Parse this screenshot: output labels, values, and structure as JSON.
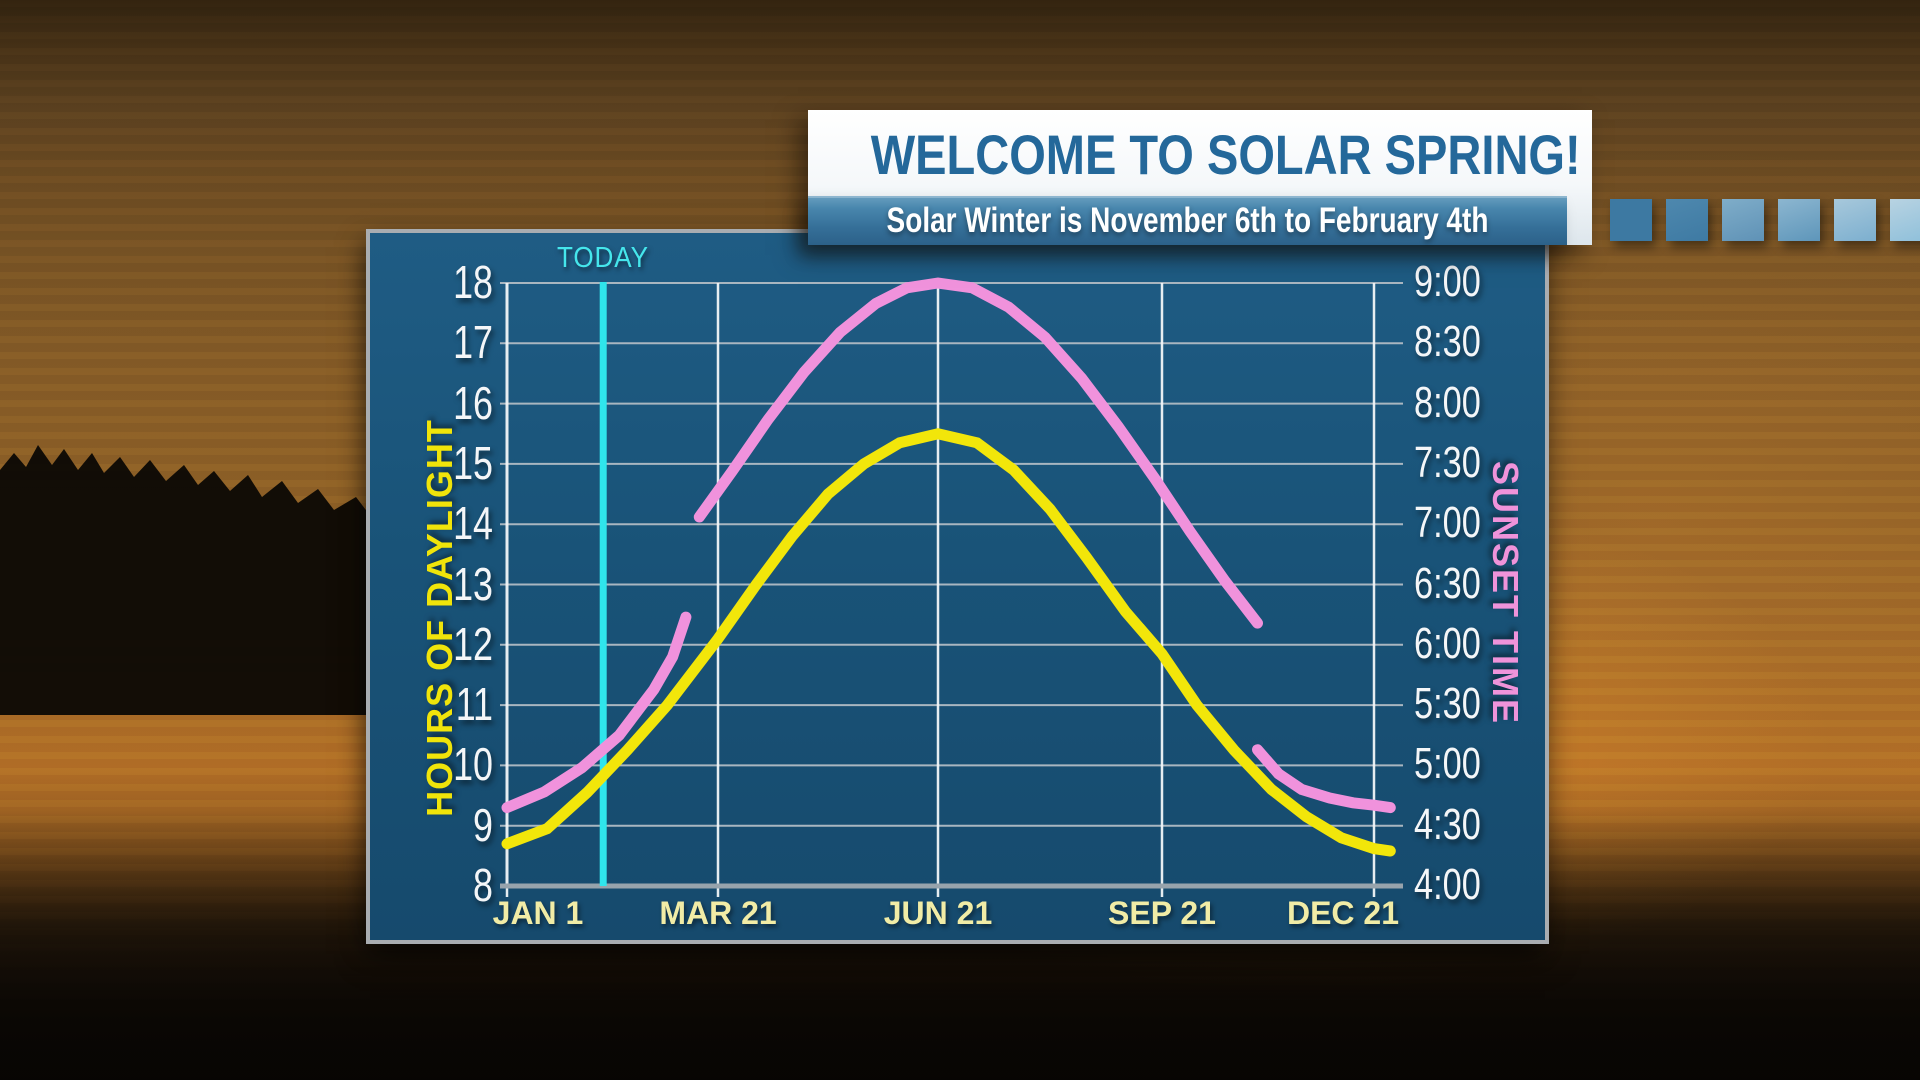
{
  "banner": {
    "title": "WELCOME TO SOLAR SPRING!",
    "subtitle": "Solar Winter is November 6th to February 4th"
  },
  "chart_data": {
    "type": "line",
    "title": "",
    "today_marker": {
      "label": "TODAY",
      "day_of_year": 36
    },
    "x_axis": {
      "ticks": [
        {
          "label": "JAN 1",
          "day": 0
        },
        {
          "label": "MAR 21",
          "day": 79
        },
        {
          "label": "JUN 21",
          "day": 171
        },
        {
          "label": "SEP 21",
          "day": 263
        },
        {
          "label": "DEC 21",
          "day": 354
        }
      ],
      "range_days": [
        0,
        366
      ]
    },
    "left_axis": {
      "label": "HOURS OF DAYLIGHT",
      "min": 8,
      "max": 18,
      "tick_step": 1
    },
    "right_axis": {
      "label": "SUNSET TIME",
      "ticks_bottom_to_top": [
        "4:00",
        "4:30",
        "5:00",
        "5:30",
        "6:00",
        "6:30",
        "7:00",
        "7:30",
        "8:00",
        "8:30",
        "9:00"
      ]
    },
    "series": [
      {
        "name": "Hours of Daylight",
        "axis": "left",
        "color": "#f2e60a",
        "points_day_hours": [
          [
            0,
            8.7
          ],
          [
            15,
            8.95
          ],
          [
            30,
            9.55
          ],
          [
            45,
            10.25
          ],
          [
            60,
            11.0
          ],
          [
            79,
            12.1
          ],
          [
            95,
            13.0
          ],
          [
            110,
            13.8
          ],
          [
            125,
            14.5
          ],
          [
            140,
            15.0
          ],
          [
            155,
            15.35
          ],
          [
            171,
            15.5
          ],
          [
            187,
            15.35
          ],
          [
            202,
            14.9
          ],
          [
            217,
            14.25
          ],
          [
            232,
            13.45
          ],
          [
            248,
            12.55
          ],
          [
            263,
            11.85
          ],
          [
            278,
            11.0
          ],
          [
            294,
            10.25
          ],
          [
            310,
            9.6
          ],
          [
            325,
            9.15
          ],
          [
            340,
            8.8
          ],
          [
            354,
            8.62
          ],
          [
            361,
            8.58
          ]
        ]
      },
      {
        "name": "Sunset Time",
        "axis": "right",
        "color": "#f092dc",
        "units": "pm_hours",
        "segments_day_time": [
          [
            [
              0,
              4.65
            ],
            [
              14,
              4.78
            ],
            [
              28,
              4.98
            ],
            [
              42,
              5.25
            ],
            [
              55,
              5.63
            ],
            [
              62,
              5.9
            ],
            [
              67,
              6.23
            ]
          ],
          [
            [
              72,
              7.06
            ],
            [
              85,
              7.44
            ],
            [
              100,
              7.87
            ],
            [
              115,
              8.26
            ],
            [
              130,
              8.59
            ],
            [
              145,
              8.83
            ],
            [
              158,
              8.96
            ],
            [
              171,
              9.0
            ],
            [
              185,
              8.96
            ],
            [
              200,
              8.8
            ],
            [
              215,
              8.55
            ],
            [
              230,
              8.21
            ],
            [
              245,
              7.81
            ],
            [
              260,
              7.38
            ],
            [
              275,
              6.94
            ],
            [
              290,
              6.53
            ],
            [
              304,
              6.18
            ]
          ],
          [
            [
              304,
              5.13
            ],
            [
              313,
              4.93
            ],
            [
              323,
              4.8
            ],
            [
              335,
              4.73
            ],
            [
              345,
              4.69
            ],
            [
              354,
              4.67
            ],
            [
              361,
              4.65
            ]
          ]
        ]
      }
    ],
    "grid": true,
    "legend": "none"
  },
  "colors": {
    "panel_bg": "#185077",
    "grid_horizontal": "#a9b6c0",
    "grid_vertical": "#f2f6f8",
    "axis_bottom": "#97a3ac",
    "today_line": "#2fe5ec",
    "daylight_yellow": "#f2e60a",
    "sunset_pink": "#f092dc",
    "x_label_yellow": "#f1eca6",
    "tick_white": "#f4f6f8",
    "title_blue": "#24689a"
  }
}
